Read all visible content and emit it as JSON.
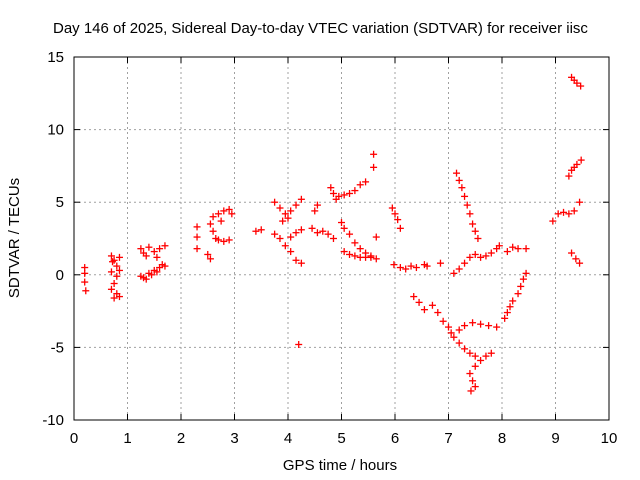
{
  "chart_data": {
    "type": "scatter",
    "title": "Day 146 of 2025, Sidereal Day-to-day VTEC variation (SDTVAR) for receiver iisc",
    "xlabel": "GPS time / hours",
    "ylabel": "SDTVAR / TECUs",
    "xlim": [
      0,
      10
    ],
    "ylim": [
      -10,
      15
    ],
    "xticks": [
      "0",
      "1",
      "2",
      "3",
      "4",
      "5",
      "6",
      "7",
      "8",
      "9",
      "10"
    ],
    "yticks": [
      "-10",
      "-5",
      "0",
      "5",
      "10",
      "15"
    ],
    "grid": true,
    "marker": "+",
    "color": "#ff0000",
    "series": [
      {
        "name": "",
        "points": [
          [
            0.2,
            0.5
          ],
          [
            0.2,
            0.1
          ],
          [
            0.2,
            -0.5
          ],
          [
            0.22,
            -1.1
          ],
          [
            0.7,
            1.3
          ],
          [
            0.75,
            1.0
          ],
          [
            0.8,
            0.6
          ],
          [
            0.7,
            0.2
          ],
          [
            0.8,
            -0.1
          ],
          [
            0.75,
            -0.6
          ],
          [
            0.7,
            -1.0
          ],
          [
            0.8,
            -1.3
          ],
          [
            0.75,
            -1.6
          ],
          [
            0.85,
            1.2
          ],
          [
            0.85,
            -1.5
          ],
          [
            0.72,
            0.9
          ],
          [
            0.85,
            0.3
          ],
          [
            1.25,
            1.8
          ],
          [
            1.3,
            1.5
          ],
          [
            1.4,
            1.9
          ],
          [
            1.5,
            1.6
          ],
          [
            1.6,
            1.8
          ],
          [
            1.7,
            2.0
          ],
          [
            1.35,
            1.3
          ],
          [
            1.55,
            1.2
          ],
          [
            1.25,
            -0.1
          ],
          [
            1.3,
            -0.2
          ],
          [
            1.4,
            0.1
          ],
          [
            1.45,
            0.0
          ],
          [
            1.5,
            0.3
          ],
          [
            1.55,
            0.2
          ],
          [
            1.6,
            0.5
          ],
          [
            1.65,
            0.7
          ],
          [
            1.7,
            0.6
          ],
          [
            1.35,
            -0.3
          ],
          [
            2.3,
            3.3
          ],
          [
            2.3,
            2.6
          ],
          [
            2.3,
            1.8
          ],
          [
            2.55,
            3.5
          ],
          [
            2.6,
            4.0
          ],
          [
            2.7,
            4.2
          ],
          [
            2.8,
            4.4
          ],
          [
            2.9,
            4.5
          ],
          [
            2.6,
            3.0
          ],
          [
            2.65,
            2.5
          ],
          [
            2.5,
            1.4
          ],
          [
            2.55,
            1.1
          ],
          [
            2.7,
            2.4
          ],
          [
            2.8,
            2.3
          ],
          [
            2.9,
            2.4
          ],
          [
            2.95,
            4.2
          ],
          [
            2.75,
            3.7
          ],
          [
            3.4,
            3.0
          ],
          [
            3.5,
            3.1
          ],
          [
            3.75,
            5.0
          ],
          [
            3.85,
            4.6
          ],
          [
            3.95,
            4.2
          ],
          [
            4.05,
            4.4
          ],
          [
            4.15,
            4.8
          ],
          [
            4.25,
            5.2
          ],
          [
            3.9,
            3.7
          ],
          [
            4.0,
            3.9
          ],
          [
            3.75,
            2.8
          ],
          [
            3.85,
            2.5
          ],
          [
            3.95,
            2.0
          ],
          [
            4.05,
            1.6
          ],
          [
            4.15,
            1.0
          ],
          [
            4.25,
            0.8
          ],
          [
            4.05,
            2.6
          ],
          [
            4.15,
            2.9
          ],
          [
            4.25,
            3.1
          ],
          [
            4.2,
            -4.8
          ],
          [
            4.45,
            3.2
          ],
          [
            4.55,
            2.9
          ],
          [
            4.65,
            3.0
          ],
          [
            4.75,
            2.8
          ],
          [
            4.85,
            2.5
          ],
          [
            4.5,
            4.4
          ],
          [
            4.55,
            4.8
          ],
          [
            4.85,
            5.6
          ],
          [
            4.8,
            6.0
          ],
          [
            4.9,
            5.2
          ],
          [
            4.95,
            5.4
          ],
          [
            5.05,
            5.5
          ],
          [
            5.15,
            5.6
          ],
          [
            5.25,
            5.8
          ],
          [
            5.35,
            6.2
          ],
          [
            5.45,
            6.4
          ],
          [
            5.0,
            3.6
          ],
          [
            5.05,
            3.2
          ],
          [
            5.15,
            2.8
          ],
          [
            5.25,
            2.2
          ],
          [
            5.35,
            1.8
          ],
          [
            5.45,
            1.5
          ],
          [
            5.55,
            1.3
          ],
          [
            5.65,
            1.1
          ],
          [
            5.05,
            1.6
          ],
          [
            5.15,
            1.4
          ],
          [
            5.25,
            1.3
          ],
          [
            5.35,
            1.2
          ],
          [
            5.45,
            1.2
          ],
          [
            5.55,
            1.2
          ],
          [
            5.6,
            8.3
          ],
          [
            5.6,
            7.4
          ],
          [
            5.65,
            2.6
          ],
          [
            5.95,
            4.6
          ],
          [
            6.0,
            4.2
          ],
          [
            6.05,
            3.8
          ],
          [
            6.1,
            3.2
          ],
          [
            5.98,
            0.7
          ],
          [
            6.1,
            0.5
          ],
          [
            6.2,
            0.4
          ],
          [
            6.3,
            0.6
          ],
          [
            6.4,
            0.5
          ],
          [
            6.55,
            0.7
          ],
          [
            6.6,
            0.6
          ],
          [
            6.85,
            0.8
          ],
          [
            6.35,
            -1.5
          ],
          [
            6.45,
            -1.9
          ],
          [
            6.55,
            -2.4
          ],
          [
            6.7,
            -2.1
          ],
          [
            6.8,
            -2.6
          ],
          [
            6.9,
            -3.2
          ],
          [
            7.0,
            -3.6
          ],
          [
            7.05,
            -4.0
          ],
          [
            7.1,
            -4.3
          ],
          [
            7.2,
            -4.7
          ],
          [
            7.3,
            -5.1
          ],
          [
            7.4,
            -5.4
          ],
          [
            7.5,
            -5.6
          ],
          [
            7.2,
            -3.8
          ],
          [
            7.3,
            -3.5
          ],
          [
            7.45,
            -3.3
          ],
          [
            7.6,
            -3.4
          ],
          [
            7.75,
            -3.5
          ],
          [
            7.9,
            -3.6
          ],
          [
            7.4,
            -6.8
          ],
          [
            7.5,
            -6.3
          ],
          [
            7.6,
            -5.9
          ],
          [
            7.7,
            -5.6
          ],
          [
            7.8,
            -5.4
          ],
          [
            7.45,
            -7.3
          ],
          [
            7.5,
            -7.7
          ],
          [
            7.42,
            -8.0
          ],
          [
            7.15,
            7.0
          ],
          [
            7.2,
            6.5
          ],
          [
            7.25,
            6.0
          ],
          [
            7.3,
            5.4
          ],
          [
            7.35,
            4.8
          ],
          [
            7.4,
            4.2
          ],
          [
            7.45,
            3.5
          ],
          [
            7.5,
            3.0
          ],
          [
            7.55,
            2.5
          ],
          [
            7.1,
            0.1
          ],
          [
            7.2,
            0.4
          ],
          [
            7.3,
            0.8
          ],
          [
            7.4,
            1.2
          ],
          [
            7.5,
            1.4
          ],
          [
            7.6,
            1.2
          ],
          [
            7.7,
            1.3
          ],
          [
            7.8,
            1.5
          ],
          [
            7.9,
            1.8
          ],
          [
            7.95,
            2.0
          ],
          [
            8.05,
            -3.0
          ],
          [
            8.1,
            -2.6
          ],
          [
            8.15,
            -2.2
          ],
          [
            8.2,
            -1.8
          ],
          [
            8.3,
            -1.3
          ],
          [
            8.35,
            -0.8
          ],
          [
            8.4,
            -0.3
          ],
          [
            8.45,
            0.1
          ],
          [
            8.1,
            1.6
          ],
          [
            8.2,
            1.9
          ],
          [
            8.3,
            1.8
          ],
          [
            8.45,
            1.8
          ],
          [
            8.95,
            3.7
          ],
          [
            9.05,
            4.2
          ],
          [
            9.15,
            4.3
          ],
          [
            9.25,
            4.2
          ],
          [
            9.35,
            4.4
          ],
          [
            9.45,
            5.0
          ],
          [
            9.25,
            6.8
          ],
          [
            9.3,
            7.2
          ],
          [
            9.35,
            7.4
          ],
          [
            9.4,
            7.6
          ],
          [
            9.48,
            7.9
          ],
          [
            9.3,
            13.6
          ],
          [
            9.35,
            13.4
          ],
          [
            9.4,
            13.2
          ],
          [
            9.47,
            13.0
          ],
          [
            9.3,
            1.5
          ],
          [
            9.38,
            1.1
          ],
          [
            9.45,
            0.8
          ]
        ]
      }
    ]
  }
}
